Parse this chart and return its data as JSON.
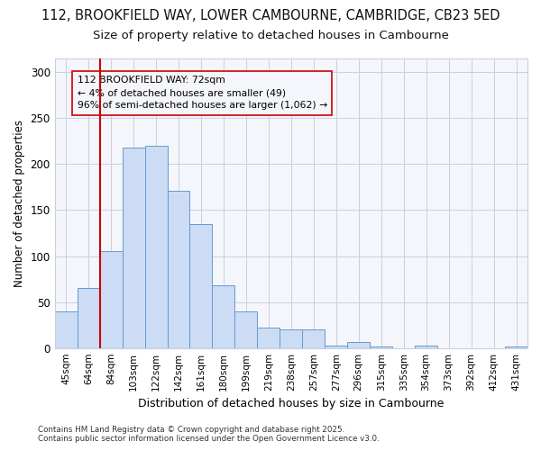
{
  "title_line1": "112, BROOKFIELD WAY, LOWER CAMBOURNE, CAMBRIDGE, CB23 5ED",
  "title_line2": "Size of property relative to detached houses in Cambourne",
  "xlabel": "Distribution of detached houses by size in Cambourne",
  "ylabel": "Number of detached properties",
  "categories": [
    "45sqm",
    "64sqm",
    "84sqm",
    "103sqm",
    "122sqm",
    "142sqm",
    "161sqm",
    "180sqm",
    "199sqm",
    "219sqm",
    "238sqm",
    "257sqm",
    "277sqm",
    "296sqm",
    "315sqm",
    "335sqm",
    "354sqm",
    "373sqm",
    "392sqm",
    "412sqm",
    "431sqm"
  ],
  "values": [
    40,
    65,
    105,
    218,
    220,
    171,
    135,
    68,
    40,
    22,
    20,
    20,
    3,
    7,
    2,
    0,
    3,
    0,
    0,
    0,
    2
  ],
  "bar_color": "#ccdcf5",
  "bar_edge_color": "#6699cc",
  "grid_color": "#c8d0e0",
  "vline_x": 1.5,
  "vline_color": "#cc0000",
  "annotation_text": "112 BROOKFIELD WAY: 72sqm\n← 4% of detached houses are smaller (49)\n96% of semi-detached houses are larger (1,062) →",
  "ylim": [
    0,
    315
  ],
  "yticks": [
    0,
    50,
    100,
    150,
    200,
    250,
    300
  ],
  "background_color": "#ffffff",
  "plot_bg_color": "#f4f6fb",
  "footer_text": "Contains HM Land Registry data © Crown copyright and database right 2025.\nContains public sector information licensed under the Open Government Licence v3.0.",
  "title_fontsize": 10.5,
  "subtitle_fontsize": 9.5
}
